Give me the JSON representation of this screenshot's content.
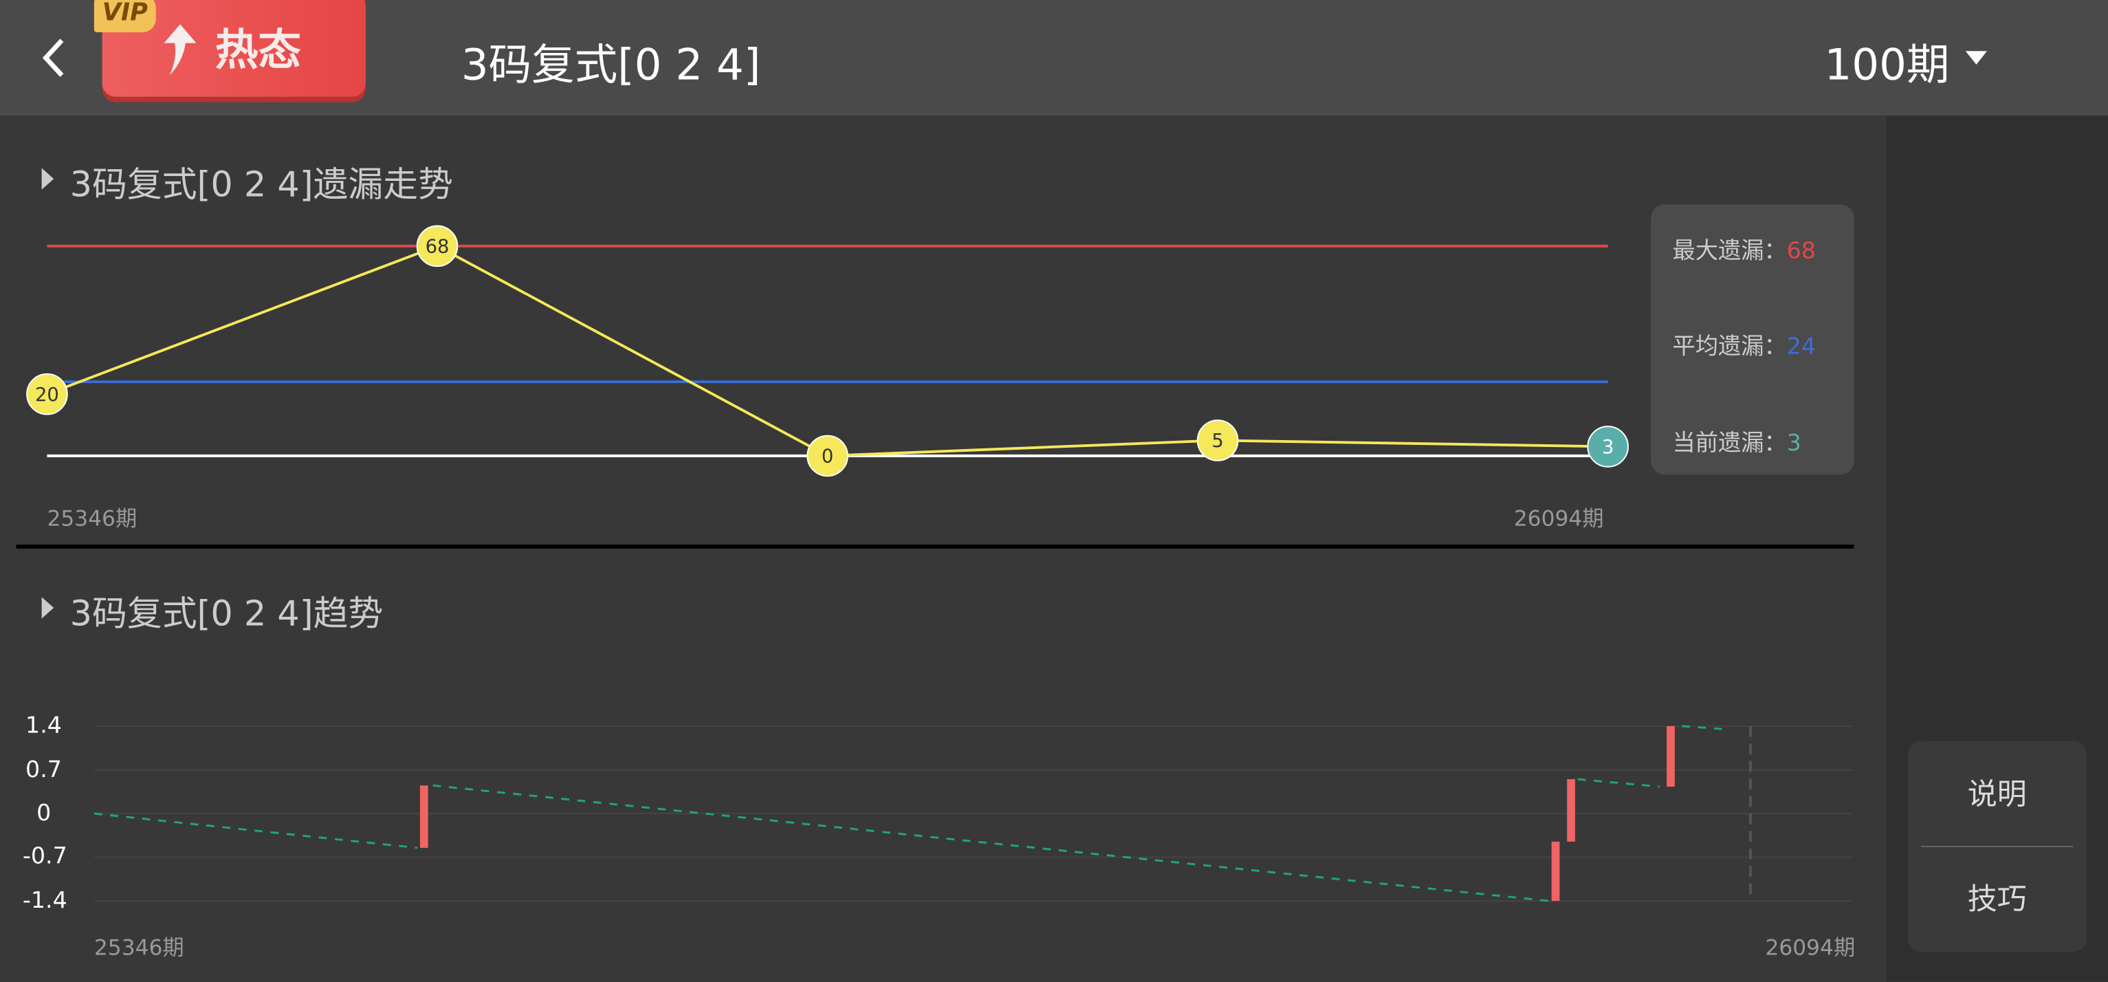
{
  "header": {
    "back_icon": "chevron-left-icon",
    "hot_badge": {
      "vip_label": "VIP",
      "label": "热态",
      "icon": "arrow-up-icon"
    },
    "title": "3码复式[0 2 4]",
    "period_select": "100期"
  },
  "miss_chart": {
    "title": "3码复式[0 2 4]遗漏走势",
    "x_start_label": "25346期",
    "x_end_label": "26094期",
    "legend": {
      "max_label": "最大遗漏：",
      "max_value": "68",
      "avg_label": "平均遗漏：",
      "avg_value": "24",
      "cur_label": "当前遗漏：",
      "cur_value": "3"
    },
    "colors": {
      "max": "#e04848",
      "avg": "#3a6fd8",
      "zero": "#ffffff",
      "line": "#f5e85a",
      "current": "#5aaeaa"
    }
  },
  "trend_chart": {
    "title": "3码复式[0 2 4]趋势",
    "x_start_label": "25346期",
    "x_end_label": "26094期",
    "y_ticks": [
      "1.4",
      "0.7",
      "0",
      "-0.7",
      "-1.4"
    ],
    "colors": {
      "bar": "#f06464",
      "dash": "#1fa67a"
    }
  },
  "chart_data": [
    {
      "type": "line",
      "title": "3码复式[0 2 4]遗漏走势",
      "values": [
        20,
        68,
        0,
        5,
        3
      ],
      "labels": [
        "20",
        "68",
        "0",
        "5",
        "3"
      ],
      "reference_lines": {
        "max": 68,
        "avg": 24,
        "zero": 0
      },
      "x_range": [
        "25346期",
        "26094期"
      ]
    },
    {
      "type": "line",
      "title": "3码复式[0 2 4]趋势",
      "ylim": [
        -1.4,
        1.4
      ],
      "x_range": [
        25346,
        26094
      ],
      "dashed_segments": [
        [
          [
            25346,
            0
          ],
          [
            25492,
            -0.55
          ]
        ],
        [
          [
            25499,
            0.45
          ],
          [
            26003,
            -1.4
          ]
        ],
        [
          [
            26016,
            0.55
          ],
          [
            26053,
            0.43
          ]
        ],
        [
          [
            26063,
            1.4
          ],
          [
            26083,
            1.35
          ]
        ]
      ],
      "bars": [
        {
          "x": 25495,
          "from": -0.55,
          "to": 0.45
        },
        {
          "x": 26006,
          "from": -1.4,
          "to": -0.45
        },
        {
          "x": 26013,
          "from": -0.45,
          "to": 0.55
        },
        {
          "x": 26058,
          "from": 0.43,
          "to": 1.4
        }
      ],
      "current_marker_x": 26094
    }
  ],
  "side_buttons": {
    "explain": "说明",
    "tips": "技巧"
  }
}
